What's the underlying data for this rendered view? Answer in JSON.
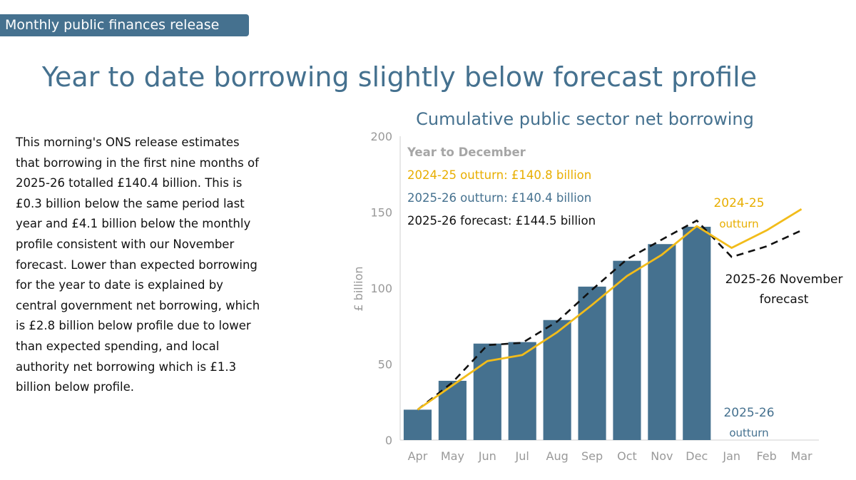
{
  "header": {
    "tag": "Monthly public finances release",
    "headline": "Year to date borrowing slightly below forecast profile"
  },
  "body": {
    "paragraph": "This morning's ONS release estimates that borrowing in the first nine months of 2025-26 totalled £140.4 billion. This is £0.3 billion below the same period last year and £4.1 billion below the monthly profile consistent with our November forecast. Lower than expected borrowing for the year to date is explained by central government net borrowing, which is £2.8 billion below profile due to lower than expected spending, and local authority net borrowing which is £1.3 billion below profile."
  },
  "colors": {
    "bars": "#45718f",
    "outturn_2024_25": "#f2bc1a",
    "forecast": "#111111",
    "axis_text": "#999999"
  },
  "chart_data": {
    "type": "bar",
    "title": "Cumulative public sector net borrowing",
    "ylabel": "£ billion",
    "xlabel": "",
    "ylim": [
      0,
      200
    ],
    "yticks": [
      0,
      50,
      100,
      150,
      200
    ],
    "grid": false,
    "categories": [
      "Apr",
      "May",
      "Jun",
      "Jul",
      "Aug",
      "Sep",
      "Oct",
      "Nov",
      "Dec",
      "Jan",
      "Feb",
      "Mar"
    ],
    "series": [
      {
        "name": "2025-26 outturn",
        "kind": "bar",
        "values": [
          20,
          39,
          63.5,
          64.5,
          79,
          101,
          118,
          129,
          140.4,
          null,
          null,
          null
        ]
      },
      {
        "name": "2024-25 outturn",
        "kind": "line",
        "values": [
          20,
          36,
          52,
          56,
          71,
          89,
          108,
          122,
          140.8,
          126.5,
          138,
          152
        ]
      },
      {
        "name": "2025-26 November forecast",
        "kind": "dashed-line",
        "values": [
          20,
          38,
          62.5,
          64,
          78,
          99,
          119,
          132,
          144.5,
          120.5,
          127.5,
          138
        ]
      }
    ],
    "annotations": {
      "summary_heading": "Year to December",
      "summary_2024_25": "2024-25 outturn: £140.8 billion",
      "summary_2025_26": "2025-26 outturn: £140.4 billion",
      "summary_forecast": "2025-26 forecast: £144.5 billion",
      "label_2024_25_line1": "2024-25",
      "label_2024_25_line2": "outturn",
      "label_forecast_line1": "2025-26 November",
      "label_forecast_line2": "forecast",
      "label_2025_26_line1": "2025-26",
      "label_2025_26_line2": "outturn"
    }
  }
}
